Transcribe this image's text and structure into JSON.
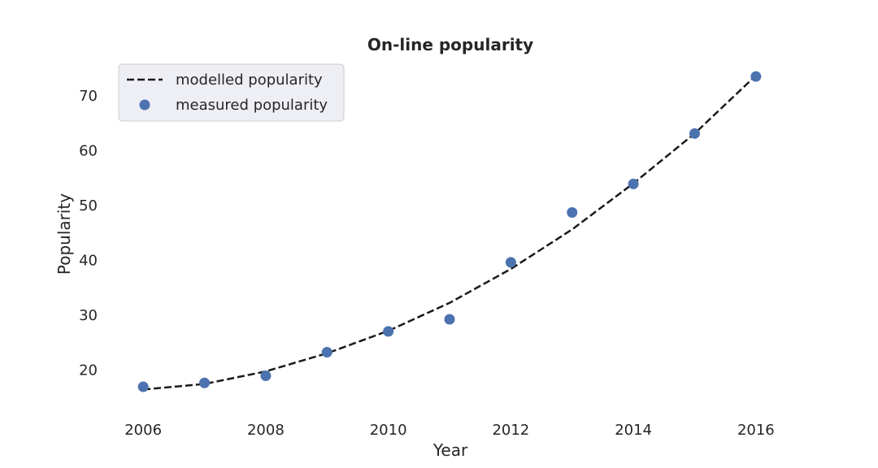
{
  "chart_data": {
    "type": "scatter",
    "title": "On-line popularity",
    "xlabel": "Year",
    "ylabel": "Popularity",
    "xlim": [
      2005.6,
      2016.4
    ],
    "ylim": [
      12.5,
      75.5
    ],
    "xticks": [
      2006,
      2008,
      2010,
      2012,
      2014,
      2016
    ],
    "yticks": [
      20,
      30,
      40,
      50,
      60,
      70
    ],
    "grid": false,
    "legend_position": "top-left",
    "series": [
      {
        "name": "modelled popularity",
        "kind": "line",
        "style": "dashed",
        "color": "#1a1a1a",
        "x": [
          2006,
          2007,
          2008,
          2009,
          2010,
          2011,
          2012,
          2013,
          2014,
          2015,
          2016
        ],
        "y": [
          16.3,
          17.3,
          19.6,
          22.9,
          27.0,
          32.1,
          38.3,
          45.5,
          53.9,
          63.0,
          73.6
        ]
      },
      {
        "name": "measured popularity",
        "kind": "scatter",
        "color": "#4c72b0",
        "x": [
          2006,
          2007,
          2008,
          2009,
          2010,
          2011,
          2012,
          2013,
          2014,
          2015,
          2016
        ],
        "y": [
          16.8,
          17.5,
          18.8,
          23.1,
          26.9,
          29.1,
          39.5,
          48.6,
          53.8,
          63.0,
          73.4
        ]
      }
    ]
  }
}
